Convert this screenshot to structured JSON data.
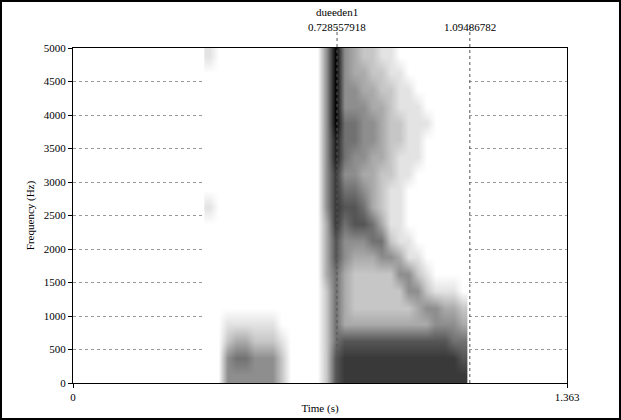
{
  "chart_data": {
    "type": "heatmap",
    "xlabel": "Time (s)",
    "ylabel": "Frequency (Hz)",
    "xlim": [
      0,
      1.363
    ],
    "xticks": [
      0,
      1.363
    ],
    "ylim": [
      0,
      5000
    ],
    "yticks": [
      0,
      500,
      1000,
      1500,
      2000,
      2500,
      3000,
      3500,
      4000,
      4500,
      5000
    ],
    "grid": "y",
    "color": "#000000",
    "zlim": [
      0,
      9
    ],
    "x": [
      0.375,
      0.4,
      0.425,
      0.45,
      0.475,
      0.5,
      0.525,
      0.55,
      0.575,
      0.6,
      0.625,
      0.65,
      0.675,
      0.7,
      0.725,
      0.75,
      0.775,
      0.8,
      0.825,
      0.85,
      0.875,
      0.9,
      0.925,
      0.95,
      0.975,
      1.0,
      1.025,
      1.05,
      1.075
    ],
    "y": [
      125,
      375,
      625,
      875,
      1125,
      1375,
      1625,
      1875,
      2125,
      2375,
      2625,
      2875,
      3125,
      3375,
      3625,
      3875,
      4125,
      4375,
      4625,
      4875
    ],
    "z": [
      [
        0,
        0,
        4,
        4,
        4,
        4,
        4,
        4,
        2,
        0,
        0,
        0,
        0,
        2,
        6,
        7,
        7,
        7,
        7,
        7,
        7,
        7,
        7,
        7,
        7,
        7,
        7,
        7,
        7
      ],
      [
        0,
        0,
        4,
        5,
        5,
        4,
        4,
        4,
        2,
        0,
        0,
        0,
        0,
        2,
        6,
        7,
        7,
        7,
        7,
        7,
        7,
        7,
        7,
        7,
        7,
        7,
        7,
        7,
        6
      ],
      [
        0,
        0,
        2,
        3,
        3,
        2,
        2,
        2,
        1,
        0,
        0,
        0,
        0,
        2,
        5,
        6,
        6,
        6,
        6,
        6,
        6,
        6,
        6,
        6,
        6,
        6,
        6,
        5,
        5
      ],
      [
        0,
        0,
        1,
        1,
        1,
        1,
        1,
        1,
        0,
        0,
        0,
        0,
        0,
        2,
        5,
        3,
        3,
        3,
        3,
        3,
        3,
        3,
        3,
        3,
        3,
        4,
        4,
        4,
        3
      ],
      [
        0,
        0,
        0,
        0,
        0,
        0,
        0,
        0,
        0,
        0,
        0,
        0,
        0,
        2,
        5,
        3,
        2,
        2,
        2,
        2,
        2,
        2,
        2,
        3,
        4,
        4,
        3,
        3,
        2
      ],
      [
        0,
        0,
        0,
        0,
        0,
        0,
        0,
        0,
        0,
        0,
        0,
        0,
        0,
        2,
        5,
        3,
        2,
        2,
        2,
        2,
        2,
        2,
        4,
        4,
        2,
        1,
        1,
        1,
        0
      ],
      [
        0,
        0,
        0,
        0,
        0,
        0,
        0,
        0,
        0,
        0,
        0,
        0,
        0,
        3,
        5,
        3,
        2,
        2,
        2,
        2,
        2,
        4,
        4,
        2,
        1,
        0,
        0,
        0,
        0
      ],
      [
        0,
        0,
        0,
        0,
        0,
        0,
        0,
        0,
        0,
        0,
        0,
        0,
        0,
        3,
        6,
        4,
        3,
        3,
        3,
        4,
        4,
        3,
        1,
        1,
        0,
        0,
        0,
        0,
        0
      ],
      [
        0,
        0,
        0,
        0,
        0,
        0,
        0,
        0,
        0,
        0,
        0,
        0,
        0,
        3,
        6,
        4,
        4,
        4,
        5,
        5,
        2,
        1,
        1,
        0,
        0,
        0,
        0,
        0,
        0
      ],
      [
        0,
        0,
        0,
        0,
        0,
        0,
        0,
        0,
        0,
        0,
        0,
        0,
        0,
        3,
        7,
        5,
        6,
        6,
        5,
        3,
        1,
        1,
        0,
        0,
        0,
        0,
        0,
        0,
        0
      ],
      [
        1,
        0,
        0,
        0,
        0,
        0,
        0,
        0,
        0,
        0,
        0,
        0,
        0,
        4,
        7,
        6,
        6,
        5,
        3,
        2,
        1,
        1,
        0,
        0,
        0,
        0,
        0,
        0,
        0
      ],
      [
        0,
        0,
        0,
        0,
        0,
        0,
        0,
        0,
        0,
        0,
        0,
        0,
        0,
        4,
        7,
        5,
        5,
        4,
        3,
        2,
        1,
        1,
        0,
        0,
        0,
        0,
        0,
        0,
        0
      ],
      [
        0,
        0,
        0,
        0,
        0,
        0,
        0,
        0,
        0,
        0,
        0,
        0,
        0,
        4,
        7,
        4,
        4,
        3,
        3,
        2,
        2,
        1,
        1,
        0,
        0,
        0,
        0,
        0,
        0
      ],
      [
        0,
        0,
        0,
        0,
        0,
        0,
        0,
        0,
        0,
        0,
        0,
        0,
        0,
        4,
        8,
        5,
        4,
        4,
        3,
        3,
        2,
        1,
        1,
        1,
        0,
        0,
        0,
        0,
        0
      ],
      [
        0,
        0,
        0,
        0,
        0,
        0,
        0,
        0,
        0,
        0,
        0,
        0,
        0,
        4,
        8,
        5,
        5,
        4,
        4,
        3,
        2,
        2,
        1,
        1,
        0,
        0,
        0,
        0,
        0
      ],
      [
        0,
        0,
        0,
        0,
        0,
        0,
        0,
        0,
        0,
        0,
        0,
        0,
        0,
        4,
        9,
        5,
        5,
        4,
        4,
        3,
        2,
        2,
        1,
        1,
        1,
        0,
        0,
        0,
        0
      ],
      [
        0,
        0,
        0,
        0,
        0,
        0,
        0,
        0,
        0,
        0,
        0,
        0,
        0,
        4,
        9,
        4,
        4,
        4,
        3,
        3,
        2,
        1,
        1,
        1,
        0,
        0,
        0,
        0,
        0
      ],
      [
        0,
        0,
        0,
        0,
        0,
        0,
        0,
        0,
        0,
        0,
        0,
        0,
        0,
        4,
        9,
        4,
        4,
        3,
        3,
        2,
        2,
        1,
        1,
        0,
        0,
        0,
        0,
        0,
        0
      ],
      [
        0,
        0,
        0,
        0,
        0,
        0,
        0,
        0,
        0,
        0,
        0,
        0,
        0,
        4,
        9,
        4,
        3,
        3,
        2,
        2,
        1,
        1,
        0,
        0,
        0,
        0,
        0,
        0,
        0
      ],
      [
        1,
        0,
        0,
        0,
        0,
        0,
        0,
        0,
        0,
        0,
        0,
        0,
        0,
        4,
        9,
        4,
        3,
        2,
        2,
        1,
        1,
        0,
        0,
        0,
        0,
        0,
        0,
        0,
        0
      ]
    ],
    "markers": [
      0.728557918,
      1.09486782
    ],
    "annotations": [
      {
        "text": "dueeden1",
        "x": 0.728557918
      }
    ]
  }
}
